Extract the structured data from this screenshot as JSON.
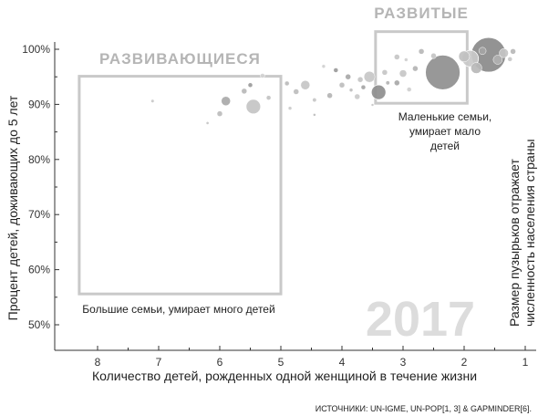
{
  "chart_data": {
    "type": "scatter",
    "xlabel": "Количество детей, рожденных одной женщиной в течение жизни",
    "ylabel": "Процент детей, доживающих до 5 лет",
    "x_ticks": [
      "8",
      "7",
      "6",
      "5",
      "4",
      "3",
      "2",
      "1"
    ],
    "y_ticks": [
      "50%",
      "60%",
      "70%",
      "80%",
      "90%",
      "100%"
    ],
    "xlim": [
      8.7,
      0.9
    ],
    "ylim": [
      47,
      101
    ],
    "x_reversed": true,
    "year": "2017",
    "size_note_line1": "Размер пузырьков отражает",
    "size_note_line2": "численность населения страны",
    "regions": [
      {
        "label": "РАЗВИВАЮЩИЕСЯ",
        "x_from": 8.3,
        "x_to": 5.0,
        "y_from": 55.6,
        "y_to": 95.1
      },
      {
        "label": "РАЗВИТЫЕ",
        "x_from": 3.45,
        "x_to": 1.95,
        "y_from": 90.2,
        "y_to": 103.2
      }
    ],
    "annotations": [
      {
        "lines": [
          "Большие семьи, умирает много детей"
        ]
      },
      {
        "lines": [
          "Маленькие семьи,",
          "умирает мало",
          "детей"
        ]
      }
    ],
    "points": [
      {
        "x": 7.1,
        "y": 90.6,
        "r": 1.8,
        "shade": "#c8c8c8"
      },
      {
        "x": 5.9,
        "y": 90.6,
        "r": 5,
        "shade": "#a9a9a9"
      },
      {
        "x": 6.2,
        "y": 86.6,
        "r": 1.6,
        "shade": "#c4c4c4"
      },
      {
        "x": 6.0,
        "y": 88.3,
        "r": 3,
        "shade": "#bcbcbc"
      },
      {
        "x": 5.45,
        "y": 89.6,
        "r": 8,
        "shade": "#c4c4c4"
      },
      {
        "x": 5.6,
        "y": 92.4,
        "r": 3,
        "shade": "#b8b8b8"
      },
      {
        "x": 5.5,
        "y": 93.5,
        "r": 2.5,
        "shade": "#9a9a9a"
      },
      {
        "x": 5.2,
        "y": 91.2,
        "r": 2.5,
        "shade": "#c2c2c2"
      },
      {
        "x": 5.3,
        "y": 95.2,
        "r": 2.5,
        "shade": "#d2d2d2"
      },
      {
        "x": 4.9,
        "y": 93.8,
        "r": 2.5,
        "shade": "#bbbbbb"
      },
      {
        "x": 4.75,
        "y": 92.3,
        "r": 3,
        "shade": "#bdbdbd"
      },
      {
        "x": 4.6,
        "y": 93.5,
        "r": 5,
        "shade": "#c6c6c6"
      },
      {
        "x": 4.85,
        "y": 89.3,
        "r": 2,
        "shade": "#cacaca"
      },
      {
        "x": 4.45,
        "y": 88.1,
        "r": 1.5,
        "shade": "#bbbbbb"
      },
      {
        "x": 4.2,
        "y": 91.6,
        "r": 3,
        "shade": "#b4b4b4"
      },
      {
        "x": 4.45,
        "y": 90.8,
        "r": 2.2,
        "shade": "#c6c6c6"
      },
      {
        "x": 4.0,
        "y": 93.5,
        "r": 3,
        "shade": "#bdbdbd"
      },
      {
        "x": 4.1,
        "y": 96.2,
        "r": 2.5,
        "shade": "#9a9a9a"
      },
      {
        "x": 4.3,
        "y": 96.9,
        "r": 2,
        "shade": "#d0d0d0"
      },
      {
        "x": 3.9,
        "y": 95.0,
        "r": 3,
        "shade": "#a8a8a8"
      },
      {
        "x": 3.7,
        "y": 94.5,
        "r": 3,
        "shade": "#c4c4c4"
      },
      {
        "x": 3.55,
        "y": 95.0,
        "r": 6,
        "shade": "#c7c7c7"
      },
      {
        "x": 3.85,
        "y": 92.6,
        "r": 2,
        "shade": "#bdbdbd"
      },
      {
        "x": 3.75,
        "y": 91.4,
        "r": 3,
        "shade": "#cacaca"
      },
      {
        "x": 3.65,
        "y": 93.1,
        "r": 2.5,
        "shade": "#a5a5a5"
      },
      {
        "x": 3.5,
        "y": 89.9,
        "r": 1.5,
        "shade": "#c7c7c7"
      },
      {
        "x": 3.3,
        "y": 95.8,
        "r": 3,
        "shade": "#c5c5c5"
      },
      {
        "x": 3.4,
        "y": 92.2,
        "r": 8,
        "shade": "#8e8e8e"
      },
      {
        "x": 3.25,
        "y": 93.9,
        "r": 2.2,
        "shade": "#b4b4b4"
      },
      {
        "x": 3.1,
        "y": 93.9,
        "r": 3,
        "shade": "#a8a8a8"
      },
      {
        "x": 3.0,
        "y": 95.6,
        "r": 4,
        "shade": "#c7c7c7"
      },
      {
        "x": 2.9,
        "y": 92.7,
        "r": 2.5,
        "shade": "#cfcfcf"
      },
      {
        "x": 2.8,
        "y": 96.5,
        "r": 3,
        "shade": "#b4b4b4"
      },
      {
        "x": 3.1,
        "y": 98.6,
        "r": 3,
        "shade": "#c6c6c6"
      },
      {
        "x": 2.95,
        "y": 98.1,
        "r": 2,
        "shade": "#cfcfcf"
      },
      {
        "x": 2.7,
        "y": 99.6,
        "r": 3,
        "shade": "#b7b7b7"
      },
      {
        "x": 2.5,
        "y": 98.8,
        "r": 3,
        "shade": "#c4c4c4"
      },
      {
        "x": 2.35,
        "y": 95.8,
        "r": 19,
        "shade": "#8f8f8f"
      },
      {
        "x": 2.0,
        "y": 98.7,
        "r": 6,
        "shade": "#c0c0c0"
      },
      {
        "x": 1.8,
        "y": 96.6,
        "r": 6,
        "shade": "#b8b8b8"
      },
      {
        "x": 1.9,
        "y": 98.3,
        "r": 9,
        "shade": "#c9c9c9"
      },
      {
        "x": 1.6,
        "y": 99.0,
        "r": 19,
        "shade": "#8a8a8a"
      },
      {
        "x": 1.45,
        "y": 98.1,
        "r": 5,
        "shade": "#b0b0b0"
      },
      {
        "x": 1.35,
        "y": 99.3,
        "r": 5,
        "shade": "#c4c4c4"
      },
      {
        "x": 1.2,
        "y": 99.6,
        "r": 3,
        "shade": "#b8b8b8"
      },
      {
        "x": 1.25,
        "y": 98.2,
        "r": 2.5,
        "shade": "#c8c8c8"
      },
      {
        "x": 1.7,
        "y": 99.7,
        "r": 4,
        "shade": "#a4a4a4"
      }
    ],
    "grid": false,
    "legend": "none"
  },
  "source": "ИСТОЧНИКИ: UN-IGME, UN-POP[1, 3] & GAPMINDER[6]."
}
